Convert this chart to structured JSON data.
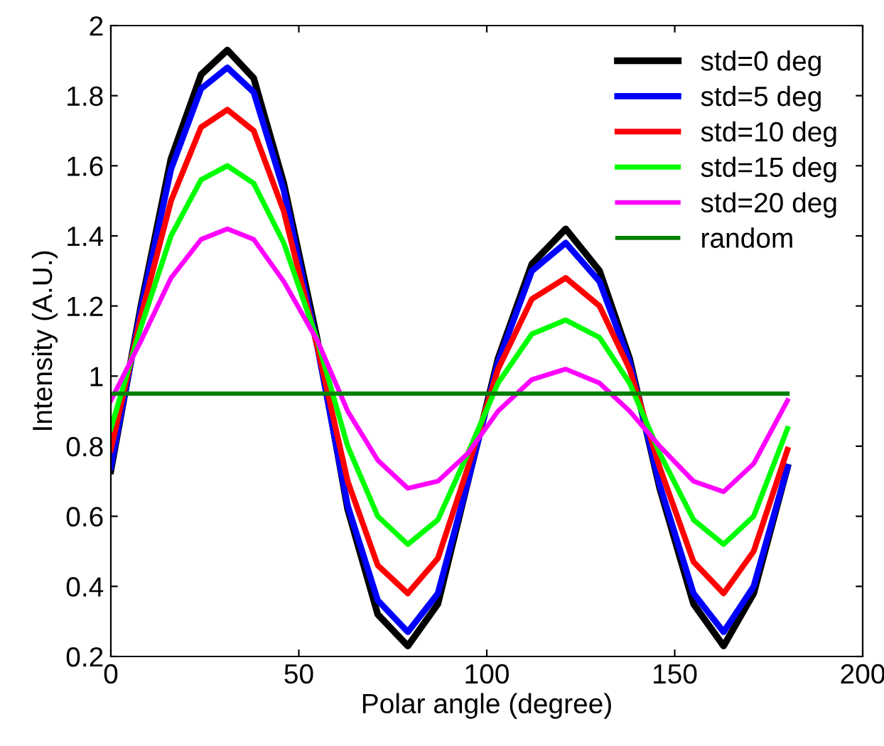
{
  "chart_data": {
    "type": "line",
    "xlabel": "Polar angle (degree)",
    "ylabel": "Intensity (A.U.)",
    "x": [
      0,
      8,
      16,
      24,
      31,
      38,
      46,
      55,
      63,
      71,
      79,
      87,
      95,
      103,
      112,
      121,
      130,
      138,
      146,
      155,
      163,
      171,
      180
    ],
    "series": [
      {
        "name": "std=0 deg",
        "color": "#000000",
        "values": [
          0.73,
          1.2,
          1.62,
          1.86,
          1.93,
          1.85,
          1.55,
          1.1,
          0.62,
          0.32,
          0.23,
          0.35,
          0.7,
          1.05,
          1.32,
          1.42,
          1.3,
          1.05,
          0.68,
          0.35,
          0.23,
          0.38,
          0.74
        ]
      },
      {
        "name": "std=5 deg",
        "color": "#0000ff",
        "values": [
          0.74,
          1.19,
          1.59,
          1.82,
          1.88,
          1.81,
          1.53,
          1.08,
          0.63,
          0.36,
          0.27,
          0.38,
          0.7,
          1.04,
          1.3,
          1.38,
          1.27,
          1.04,
          0.69,
          0.38,
          0.27,
          0.4,
          0.74
        ]
      },
      {
        "name": "std=10 deg",
        "color": "#ff0000",
        "values": [
          0.79,
          1.17,
          1.5,
          1.71,
          1.76,
          1.7,
          1.47,
          1.08,
          0.7,
          0.46,
          0.38,
          0.48,
          0.74,
          1.02,
          1.22,
          1.28,
          1.2,
          1.02,
          0.74,
          0.47,
          0.38,
          0.5,
          0.79
        ]
      },
      {
        "name": "std=15 deg",
        "color": "#00ff00",
        "values": [
          0.85,
          1.14,
          1.4,
          1.56,
          1.6,
          1.55,
          1.38,
          1.1,
          0.8,
          0.6,
          0.52,
          0.59,
          0.78,
          0.98,
          1.12,
          1.16,
          1.11,
          0.98,
          0.78,
          0.59,
          0.52,
          0.6,
          0.85
        ]
      },
      {
        "name": "std=20 deg",
        "color": "#ff00ff",
        "values": [
          0.93,
          1.1,
          1.28,
          1.39,
          1.42,
          1.39,
          1.27,
          1.1,
          0.9,
          0.76,
          0.68,
          0.7,
          0.78,
          0.9,
          0.99,
          1.02,
          0.98,
          0.9,
          0.8,
          0.7,
          0.67,
          0.75,
          0.93
        ]
      },
      {
        "name": "random",
        "color": "#008000",
        "x": [
          0,
          180
        ],
        "values": [
          0.95,
          0.95
        ]
      }
    ],
    "xlim": [
      0,
      200
    ],
    "xticks": [
      0,
      50,
      100,
      150,
      200
    ],
    "ylim": [
      0.2,
      2
    ],
    "yticks": [
      0.2,
      0.4,
      0.6,
      0.8,
      1,
      1.2,
      1.4,
      1.6,
      1.8,
      2
    ],
    "legend": "top right",
    "grid": false,
    "marker": "none",
    "line_style": "solid"
  }
}
